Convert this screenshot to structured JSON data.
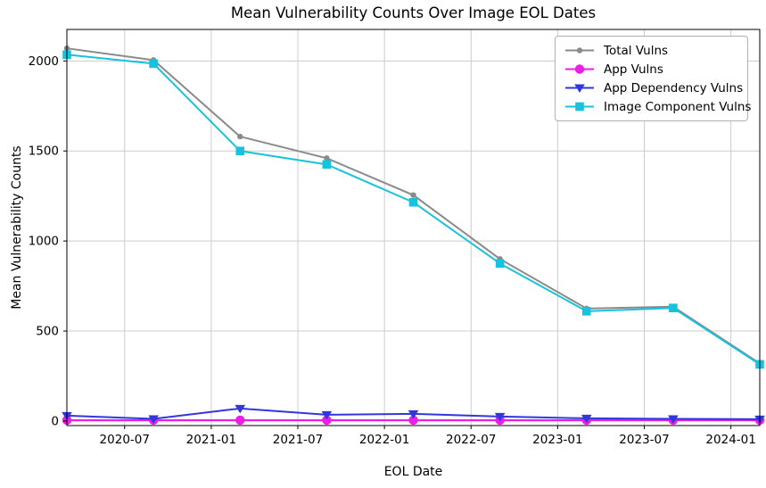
{
  "chart_data": {
    "type": "line",
    "title": "Mean Vulnerability Counts Over Image EOL Dates",
    "xlabel": "EOL Date",
    "ylabel": "Mean Vulnerability Counts",
    "grid": true,
    "legend_position": "upper right",
    "x_tick_labels": [
      "2020-07",
      "2021-01",
      "2021-07",
      "2022-01",
      "2022-07",
      "2023-01",
      "2023-07",
      "2024-01"
    ],
    "x_tick_positions_months": [
      4,
      10,
      16,
      22,
      28,
      34,
      40,
      46
    ],
    "x_data_dates": [
      "2020-03",
      "2020-09",
      "2021-03",
      "2021-09",
      "2022-03",
      "2022-09",
      "2023-03",
      "2023-09",
      "2024-03"
    ],
    "x_data_months": [
      0,
      6,
      12,
      18,
      24,
      30,
      36,
      42,
      48
    ],
    "xlim_months": [
      0,
      48
    ],
    "y_ticks": [
      0,
      500,
      1000,
      1500,
      2000
    ],
    "ylim": [
      -25,
      2175
    ],
    "grid_color": "#cccccc",
    "series": [
      {
        "name": "Total Vulns",
        "color": "#8a8a8a",
        "marker": "circle-small",
        "values": [
          2070,
          2005,
          1580,
          1460,
          1255,
          900,
          625,
          635,
          320
        ]
      },
      {
        "name": "App Vulns",
        "color": "#ee1ce6",
        "marker": "circle",
        "values": [
          5,
          5,
          5,
          5,
          5,
          5,
          5,
          5,
          5
        ]
      },
      {
        "name": "App Dependency Vulns",
        "color": "#3336dd",
        "marker": "triangle-down",
        "values": [
          30,
          12,
          70,
          35,
          40,
          25,
          15,
          12,
          10
        ]
      },
      {
        "name": "Image Component Vulns",
        "color": "#17c2de",
        "marker": "square",
        "values": [
          2035,
          1985,
          1500,
          1425,
          1215,
          875,
          610,
          628,
          315
        ]
      }
    ]
  }
}
